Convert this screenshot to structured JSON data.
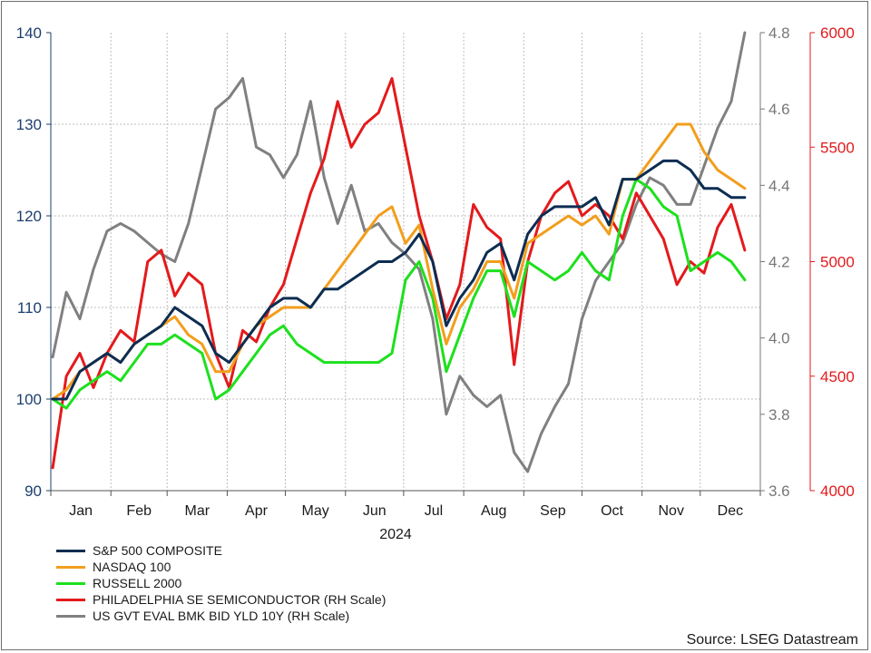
{
  "chart_data": {
    "type": "line",
    "title": "",
    "xlabel": "2024",
    "x_ticks": [
      "Jan",
      "Feb",
      "Mar",
      "Apr",
      "May",
      "Jun",
      "Jul",
      "Aug",
      "Sep",
      "Oct",
      "Nov",
      "Dec"
    ],
    "grid": true,
    "legend_placement": "bottom-left",
    "source": "Source: LSEG Datastream",
    "axes": {
      "left": {
        "ylim": [
          90,
          140
        ],
        "ticks": [
          "90",
          "100",
          "110",
          "120",
          "130",
          "140"
        ],
        "color": "#1c3f6e"
      },
      "right1": {
        "ylim": [
          3.6,
          4.8
        ],
        "ticks": [
          "3.6",
          "3.8",
          "4.0",
          "4.2",
          "4.4",
          "4.6",
          "4.8"
        ],
        "color": "#777777"
      },
      "right2": {
        "ylim": [
          4000,
          6000
        ],
        "ticks": [
          "4000",
          "4500",
          "5000",
          "5500",
          "6000"
        ],
        "color": "#e31a1c"
      }
    },
    "series": [
      {
        "name": "S&P 500 COMPOSITE",
        "axis": "left",
        "color": "#0d2d52",
        "points": [
          [
            1,
            100
          ],
          [
            8,
            100
          ],
          [
            15,
            103
          ],
          [
            22,
            104
          ],
          [
            29,
            105
          ],
          [
            36,
            104
          ],
          [
            43,
            106
          ],
          [
            50,
            107
          ],
          [
            57,
            108
          ],
          [
            64,
            110
          ],
          [
            71,
            109
          ],
          [
            78,
            108
          ],
          [
            85,
            105
          ],
          [
            92,
            104
          ],
          [
            99,
            106
          ],
          [
            106,
            108
          ],
          [
            113,
            110
          ],
          [
            120,
            111
          ],
          [
            127,
            111
          ],
          [
            134,
            110
          ],
          [
            141,
            112
          ],
          [
            148,
            112
          ],
          [
            155,
            113
          ],
          [
            162,
            114
          ],
          [
            169,
            115
          ],
          [
            176,
            115
          ],
          [
            183,
            116
          ],
          [
            190,
            118
          ],
          [
            197,
            115
          ],
          [
            204,
            108
          ],
          [
            211,
            111
          ],
          [
            218,
            113
          ],
          [
            225,
            116
          ],
          [
            232,
            117
          ],
          [
            239,
            113
          ],
          [
            246,
            118
          ],
          [
            253,
            120
          ],
          [
            260,
            121
          ],
          [
            267,
            121
          ],
          [
            274,
            121
          ],
          [
            281,
            122
          ],
          [
            288,
            119
          ],
          [
            295,
            124
          ],
          [
            302,
            124
          ],
          [
            309,
            125
          ],
          [
            316,
            126
          ],
          [
            323,
            126
          ],
          [
            330,
            125
          ],
          [
            337,
            123
          ],
          [
            344,
            123
          ],
          [
            351,
            122
          ],
          [
            358,
            122
          ]
        ]
      },
      {
        "name": "NASDAQ 100",
        "axis": "left",
        "color": "#f29e1d",
        "points": [
          [
            1,
            100
          ],
          [
            8,
            101
          ],
          [
            15,
            103
          ],
          [
            22,
            104
          ],
          [
            29,
            105
          ],
          [
            36,
            104
          ],
          [
            43,
            106
          ],
          [
            50,
            107
          ],
          [
            57,
            108
          ],
          [
            64,
            109
          ],
          [
            71,
            107
          ],
          [
            78,
            106
          ],
          [
            85,
            103
          ],
          [
            92,
            103
          ],
          [
            99,
            106
          ],
          [
            106,
            108
          ],
          [
            113,
            109
          ],
          [
            120,
            110
          ],
          [
            127,
            110
          ],
          [
            134,
            110
          ],
          [
            141,
            112
          ],
          [
            148,
            114
          ],
          [
            155,
            116
          ],
          [
            162,
            118
          ],
          [
            169,
            120
          ],
          [
            176,
            121
          ],
          [
            183,
            117
          ],
          [
            190,
            119
          ],
          [
            197,
            112
          ],
          [
            204,
            106
          ],
          [
            211,
            110
          ],
          [
            218,
            112
          ],
          [
            225,
            115
          ],
          [
            232,
            115
          ],
          [
            239,
            111
          ],
          [
            246,
            117
          ],
          [
            253,
            118
          ],
          [
            260,
            119
          ],
          [
            267,
            120
          ],
          [
            274,
            119
          ],
          [
            281,
            120
          ],
          [
            288,
            118
          ],
          [
            295,
            124
          ],
          [
            302,
            124
          ],
          [
            309,
            126
          ],
          [
            316,
            128
          ],
          [
            323,
            130
          ],
          [
            330,
            130
          ],
          [
            337,
            127
          ],
          [
            344,
            125
          ],
          [
            351,
            124
          ],
          [
            358,
            123
          ]
        ]
      },
      {
        "name": "RUSSELL 2000",
        "axis": "left",
        "color": "#1de01d",
        "points": [
          [
            1,
            100
          ],
          [
            8,
            99
          ],
          [
            15,
            101
          ],
          [
            22,
            102
          ],
          [
            29,
            103
          ],
          [
            36,
            102
          ],
          [
            43,
            104
          ],
          [
            50,
            106
          ],
          [
            57,
            106
          ],
          [
            64,
            107
          ],
          [
            71,
            106
          ],
          [
            78,
            105
          ],
          [
            85,
            100
          ],
          [
            92,
            101
          ],
          [
            99,
            103
          ],
          [
            106,
            105
          ],
          [
            113,
            107
          ],
          [
            120,
            108
          ],
          [
            127,
            106
          ],
          [
            134,
            105
          ],
          [
            141,
            104
          ],
          [
            148,
            104
          ],
          [
            155,
            104
          ],
          [
            162,
            104
          ],
          [
            169,
            104
          ],
          [
            176,
            105
          ],
          [
            183,
            113
          ],
          [
            190,
            115
          ],
          [
            197,
            111
          ],
          [
            204,
            103
          ],
          [
            211,
            107
          ],
          [
            218,
            111
          ],
          [
            225,
            114
          ],
          [
            232,
            114
          ],
          [
            239,
            109
          ],
          [
            246,
            115
          ],
          [
            253,
            114
          ],
          [
            260,
            113
          ],
          [
            267,
            114
          ],
          [
            274,
            116
          ],
          [
            281,
            114
          ],
          [
            288,
            113
          ],
          [
            295,
            120
          ],
          [
            302,
            124
          ],
          [
            309,
            123
          ],
          [
            316,
            121
          ],
          [
            323,
            120
          ],
          [
            330,
            114
          ],
          [
            337,
            115
          ],
          [
            344,
            116
          ],
          [
            351,
            115
          ],
          [
            358,
            113
          ]
        ]
      },
      {
        "name": "PHILADELPHIA SE SEMICONDUCTOR (RH Scale)",
        "axis": "right2",
        "color": "#e31a1c",
        "points": [
          [
            1,
            4100
          ],
          [
            8,
            4500
          ],
          [
            15,
            4600
          ],
          [
            22,
            4450
          ],
          [
            29,
            4600
          ],
          [
            36,
            4700
          ],
          [
            43,
            4650
          ],
          [
            50,
            5000
          ],
          [
            57,
            5050
          ],
          [
            64,
            4850
          ],
          [
            71,
            4950
          ],
          [
            78,
            4900
          ],
          [
            85,
            4600
          ],
          [
            92,
            4450
          ],
          [
            99,
            4700
          ],
          [
            106,
            4650
          ],
          [
            113,
            4800
          ],
          [
            120,
            4900
          ],
          [
            127,
            5100
          ],
          [
            134,
            5300
          ],
          [
            141,
            5450
          ],
          [
            148,
            5700
          ],
          [
            155,
            5500
          ],
          [
            162,
            5600
          ],
          [
            169,
            5650
          ],
          [
            176,
            5800
          ],
          [
            183,
            5500
          ],
          [
            190,
            5200
          ],
          [
            197,
            5000
          ],
          [
            204,
            4750
          ],
          [
            211,
            4900
          ],
          [
            218,
            5250
          ],
          [
            225,
            5150
          ],
          [
            232,
            5100
          ],
          [
            239,
            4550
          ],
          [
            246,
            5000
          ],
          [
            253,
            5200
          ],
          [
            260,
            5300
          ],
          [
            267,
            5350
          ],
          [
            274,
            5200
          ],
          [
            281,
            5250
          ],
          [
            288,
            5200
          ],
          [
            295,
            5100
          ],
          [
            302,
            5300
          ],
          [
            309,
            5200
          ],
          [
            316,
            5100
          ],
          [
            323,
            4900
          ],
          [
            330,
            5000
          ],
          [
            337,
            4950
          ],
          [
            344,
            5150
          ],
          [
            351,
            5250
          ],
          [
            358,
            5050
          ]
        ]
      },
      {
        "name": "US GVT EVAL BMK BID YLD 10Y (RH Scale)",
        "axis": "right1",
        "color": "#808080",
        "points": [
          [
            1,
            3.95
          ],
          [
            8,
            4.12
          ],
          [
            15,
            4.05
          ],
          [
            22,
            4.18
          ],
          [
            29,
            4.28
          ],
          [
            36,
            4.3
          ],
          [
            43,
            4.28
          ],
          [
            50,
            4.25
          ],
          [
            57,
            4.22
          ],
          [
            64,
            4.2
          ],
          [
            71,
            4.3
          ],
          [
            78,
            4.45
          ],
          [
            85,
            4.6
          ],
          [
            92,
            4.63
          ],
          [
            99,
            4.68
          ],
          [
            106,
            4.5
          ],
          [
            113,
            4.48
          ],
          [
            120,
            4.42
          ],
          [
            127,
            4.48
          ],
          [
            134,
            4.62
          ],
          [
            141,
            4.42
          ],
          [
            148,
            4.3
          ],
          [
            155,
            4.4
          ],
          [
            162,
            4.28
          ],
          [
            169,
            4.3
          ],
          [
            176,
            4.25
          ],
          [
            183,
            4.22
          ],
          [
            190,
            4.18
          ],
          [
            197,
            4.05
          ],
          [
            204,
            3.8
          ],
          [
            211,
            3.9
          ],
          [
            218,
            3.85
          ],
          [
            225,
            3.82
          ],
          [
            232,
            3.85
          ],
          [
            239,
            3.7
          ],
          [
            246,
            3.65
          ],
          [
            253,
            3.75
          ],
          [
            260,
            3.82
          ],
          [
            267,
            3.88
          ],
          [
            274,
            4.05
          ],
          [
            281,
            4.15
          ],
          [
            288,
            4.2
          ],
          [
            295,
            4.25
          ],
          [
            302,
            4.35
          ],
          [
            309,
            4.42
          ],
          [
            316,
            4.4
          ],
          [
            323,
            4.35
          ],
          [
            330,
            4.35
          ],
          [
            337,
            4.45
          ],
          [
            344,
            4.55
          ],
          [
            351,
            4.62
          ],
          [
            358,
            4.8
          ]
        ]
      }
    ]
  }
}
